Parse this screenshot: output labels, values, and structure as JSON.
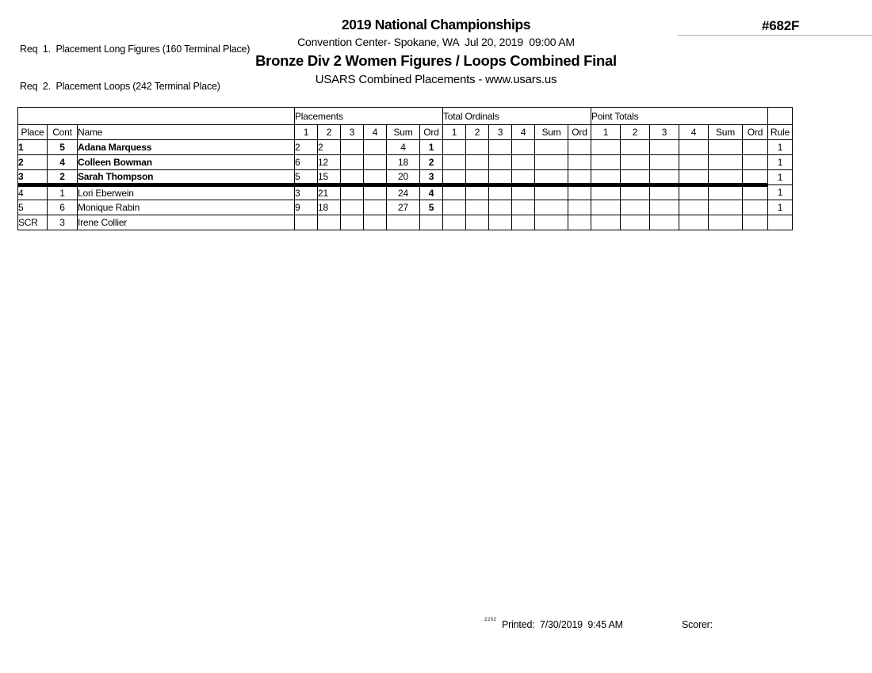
{
  "header": {
    "req_lines": [
      "Req  1.  Placement Long Figures (160 Terminal Place)",
      "Req  2.  Placement Loops (242 Terminal Place)"
    ],
    "title": "2019 National Championships",
    "venue_line": "Convention Center- Spokane, WA  Jul 20, 2019  09:00 AM",
    "event_title": "Bronze Div 2 Women Figures / Loops Combined Final",
    "subtitle": "USARS Combined Placements - www.usars.us",
    "event_number": "#682F"
  },
  "table": {
    "group_headers": [
      {
        "label": "Placements",
        "span": 6
      },
      {
        "label": "Total Ordinals",
        "span": 6
      },
      {
        "label": "Point Totals",
        "span": 6
      }
    ],
    "columns": [
      "Place",
      "Cont",
      "Name",
      "1",
      "2",
      "3",
      "4",
      "Sum",
      "Ord",
      "1",
      "2",
      "3",
      "4",
      "Sum",
      "Ord",
      "1",
      "2",
      "3",
      "4",
      "Sum",
      "Ord",
      "Rule"
    ],
    "rows": [
      {
        "place": "1",
        "cont": "5",
        "name": "Adana Marquess",
        "bold": true,
        "separator_below": false,
        "placements": [
          "2",
          "2",
          "",
          "",
          "4",
          "1"
        ],
        "total_ordinals": [
          "",
          "",
          "",
          "",
          "",
          ""
        ],
        "point_totals": [
          "",
          "",
          "",
          "",
          "",
          ""
        ],
        "rule": "1"
      },
      {
        "place": "2",
        "cont": "4",
        "name": "Colleen Bowman",
        "bold": true,
        "separator_below": false,
        "placements": [
          "6",
          "12",
          "",
          "",
          "18",
          "2"
        ],
        "total_ordinals": [
          "",
          "",
          "",
          "",
          "",
          ""
        ],
        "point_totals": [
          "",
          "",
          "",
          "",
          "",
          ""
        ],
        "rule": "1"
      },
      {
        "place": "3",
        "cont": "2",
        "name": "Sarah Thompson",
        "bold": true,
        "separator_below": true,
        "placements": [
          "5",
          "15",
          "",
          "",
          "20",
          "3"
        ],
        "total_ordinals": [
          "",
          "",
          "",
          "",
          "",
          ""
        ],
        "point_totals": [
          "",
          "",
          "",
          "",
          "",
          ""
        ],
        "rule": "1"
      },
      {
        "place": "4",
        "cont": "1",
        "name": "Lori Eberwein",
        "bold": false,
        "separator_below": false,
        "placements": [
          "3",
          "21",
          "",
          "",
          "24",
          "4"
        ],
        "total_ordinals": [
          "",
          "",
          "",
          "",
          "",
          ""
        ],
        "point_totals": [
          "",
          "",
          "",
          "",
          "",
          ""
        ],
        "rule": "1"
      },
      {
        "place": "5",
        "cont": "6",
        "name": "Monique Rabin",
        "bold": false,
        "separator_below": false,
        "placements": [
          "9",
          "18",
          "",
          "",
          "27",
          "5"
        ],
        "total_ordinals": [
          "",
          "",
          "",
          "",
          "",
          ""
        ],
        "point_totals": [
          "",
          "",
          "",
          "",
          "",
          ""
        ],
        "rule": "1"
      },
      {
        "place": "SCR",
        "cont": "3",
        "name": "Irene Collier",
        "bold": false,
        "separator_below": false,
        "placements": [
          "",
          "",
          "",
          "",
          "",
          ""
        ],
        "total_ordinals": [
          "",
          "",
          "",
          "",
          "",
          ""
        ],
        "point_totals": [
          "",
          "",
          "",
          "",
          "",
          ""
        ],
        "rule": ""
      }
    ]
  },
  "footer": {
    "report_code": "2202",
    "printed_line": "Printed:  7/30/2019  9:45 AM",
    "scorer_label": "Scorer:"
  }
}
